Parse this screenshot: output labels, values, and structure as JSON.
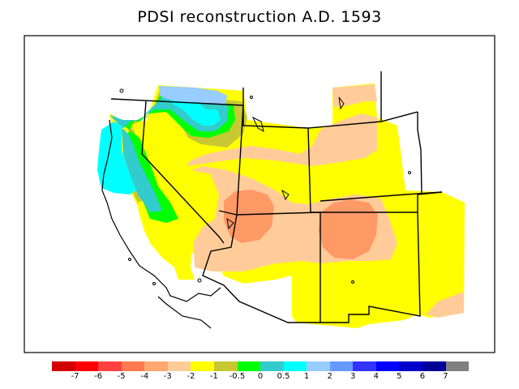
{
  "title": "PDSI reconstruction A.D. 1593",
  "legend": {
    "colors": [
      "#d40000",
      "#ff0000",
      "#ff4040",
      "#ff7a50",
      "#ffa870",
      "#ffcc99",
      "#ffff00",
      "#c8c832",
      "#00ff00",
      "#33cccc",
      "#00ffff",
      "#99ccff",
      "#6699ff",
      "#3333ff",
      "#0000ff",
      "#0000cc",
      "#000099",
      "#808080"
    ],
    "labels": [
      "-7",
      "-6",
      "-5",
      "-4",
      "-3",
      "-2",
      "-1",
      "-0.5",
      "0",
      "0.5",
      "1",
      "2",
      "3",
      "4",
      "5",
      "6",
      "7"
    ]
  }
}
